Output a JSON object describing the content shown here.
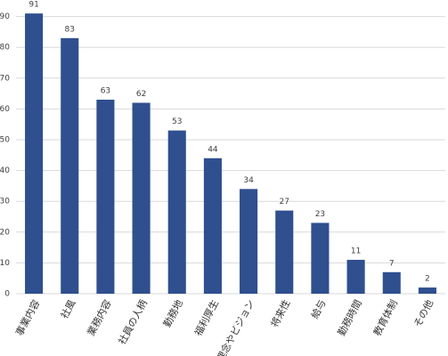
{
  "chart_data": {
    "type": "bar",
    "categories": [
      "事業内容",
      "社風",
      "業務内容",
      "社員の人柄",
      "勤務地",
      "福利厚生",
      "理念やビジョン",
      "将来性",
      "給与",
      "勤務時間",
      "教育体制",
      "その他"
    ],
    "values": [
      91,
      83,
      63,
      62,
      53,
      44,
      34,
      27,
      23,
      11,
      7,
      2
    ],
    "color": "#2f4f8f",
    "ylim": [
      0,
      95
    ],
    "yticks": [
      0,
      10,
      20,
      30,
      40,
      50,
      60,
      70,
      80,
      90
    ],
    "grid": true
  }
}
